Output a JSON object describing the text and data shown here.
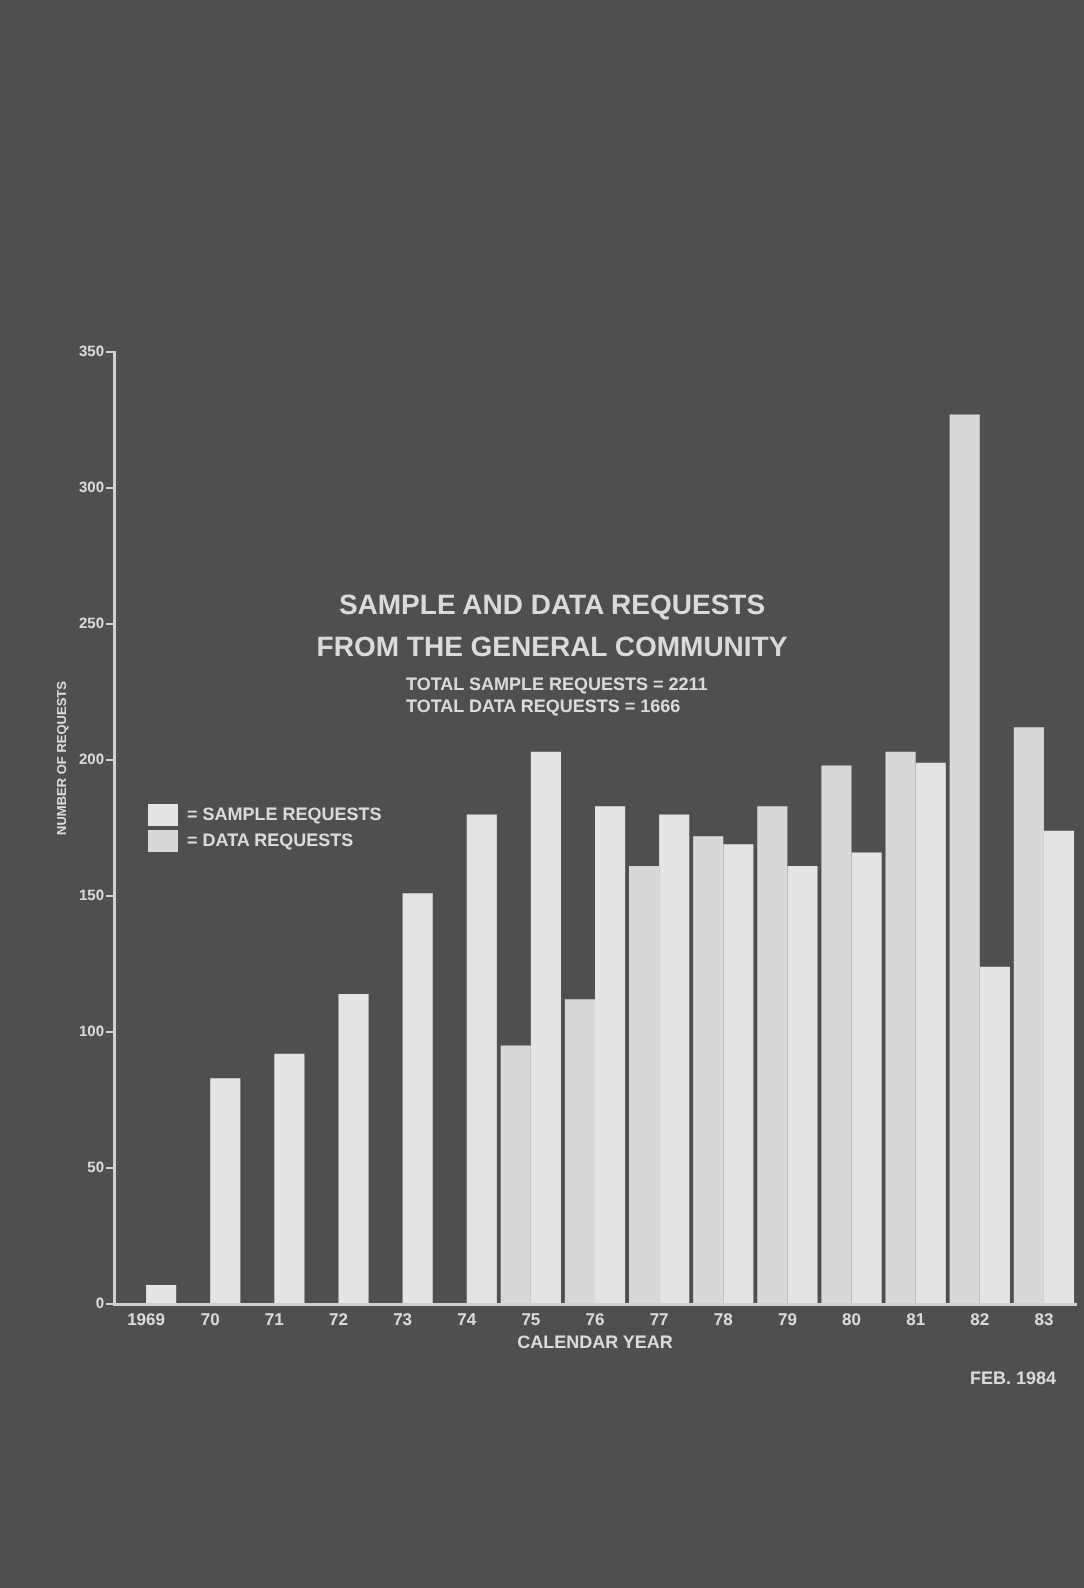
{
  "chart_data": {
    "type": "bar",
    "title": "SAMPLE AND DATA REQUESTS\nFROM THE GENERAL COMMUNITY",
    "subtitle": "TOTAL SAMPLE REQUESTS = 2211\nTOTAL DATA REQUESTS = 1666",
    "xlabel": "CALENDAR YEAR",
    "ylabel": "NUMBER OF REQUESTS",
    "annotations": [
      "FEB. 1984"
    ],
    "categories": [
      "1969",
      "70",
      "71",
      "72",
      "73",
      "74",
      "75",
      "76",
      "77",
      "78",
      "79",
      "80",
      "81",
      "82",
      "83"
    ],
    "series": [
      {
        "name": "= DATA REQUESTS",
        "color": "#d8d8d8",
        "values": [
          null,
          null,
          null,
          null,
          null,
          null,
          95,
          112,
          161,
          172,
          183,
          198,
          203,
          327,
          212
        ]
      },
      {
        "name": "= SAMPLE REQUESTS",
        "color": "#e4e4e4",
        "values": [
          7,
          83,
          92,
          114,
          151,
          180,
          203,
          183,
          180,
          169,
          161,
          166,
          199,
          124,
          174
        ]
      }
    ],
    "ylim": [
      0,
      350
    ],
    "yticks": [
      0,
      50,
      100,
      150,
      200,
      250,
      300,
      350
    ],
    "legend": "left"
  }
}
